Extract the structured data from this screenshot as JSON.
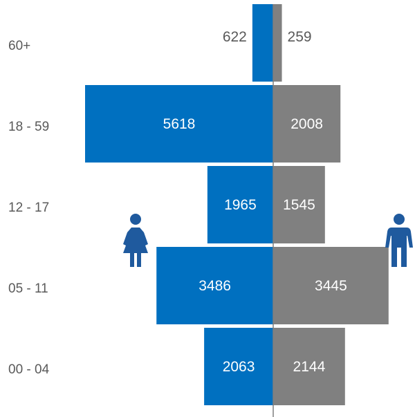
{
  "chart_data": {
    "type": "bar",
    "orientation": "horizontal",
    "layout": "population-pyramid",
    "categories": [
      "60+",
      "18 - 59",
      "12 - 17",
      "05 - 11",
      "00 - 04"
    ],
    "series": [
      {
        "values": [
          622,
          5618,
          1965,
          3486,
          2063
        ],
        "color": "#0070C0",
        "side": "left"
      },
      {
        "values": [
          259,
          2008,
          1545,
          3445,
          2144
        ],
        "color": "#808080",
        "side": "right"
      }
    ],
    "data_labels": true,
    "grid": false,
    "icons": [
      {
        "name": "female-icon",
        "color": "#1F5A9E",
        "side": "left"
      },
      {
        "name": "male-icon",
        "color": "#1F5A9E",
        "side": "right"
      }
    ]
  }
}
